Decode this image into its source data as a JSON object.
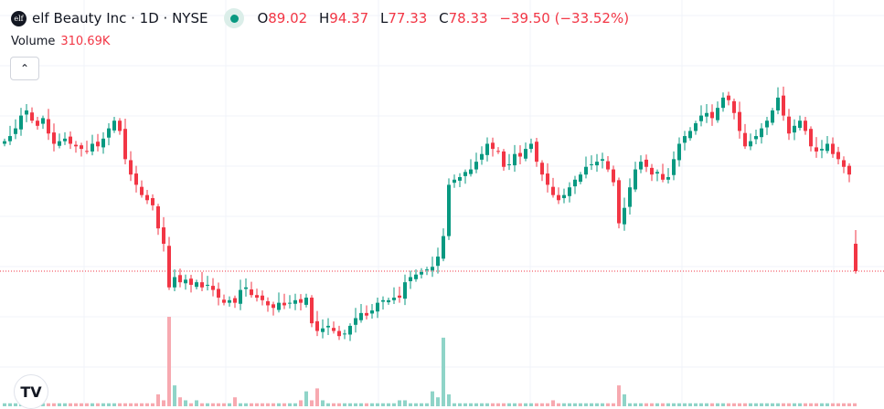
{
  "header": {
    "logo_text": "elf",
    "title": "elf Beauty Inc · 1D · NYSE",
    "ohlc": {
      "o_label": "O",
      "o": "89.02",
      "h_label": "H",
      "h": "94.37",
      "l_label": "L",
      "l": "77.33",
      "c_label": "C",
      "c": "78.33",
      "change": "−39.50 (−33.52%)"
    },
    "market_status_color": "#089981"
  },
  "volume": {
    "label": "Volume",
    "value": "310.69K"
  },
  "collapse_icon": "chevron-up-icon",
  "watermark": "TradingView",
  "colors": {
    "up": "#089981",
    "down": "#f23645",
    "up_volume": "#8fd4c8",
    "down_volume": "#f7a9b0",
    "grid": "#f0f3fa",
    "last_price_line": "#f23645"
  },
  "chart_data": {
    "type": "candlestick",
    "interval": "1D",
    "closes": [
      129,
      131,
      134,
      139,
      141,
      137,
      135,
      138,
      132,
      128,
      129,
      130,
      128,
      127,
      126,
      125,
      128,
      127,
      130,
      134,
      137,
      133,
      122,
      116,
      112,
      108,
      106,
      104,
      95,
      89,
      72,
      76,
      74,
      75,
      73,
      74,
      72,
      73,
      71,
      68,
      66,
      67,
      66,
      71,
      72,
      69,
      68,
      67,
      65,
      64,
      66,
      65,
      66,
      67,
      66,
      68,
      58,
      55,
      56,
      57,
      55,
      53,
      54,
      57,
      60,
      62,
      61,
      63,
      66,
      67,
      67,
      68,
      68,
      74,
      76,
      77,
      78,
      79,
      80,
      84,
      92,
      112,
      114,
      115,
      117,
      118,
      121,
      124,
      128,
      126,
      125,
      119,
      120,
      124,
      123,
      126,
      128,
      121,
      116,
      112,
      108,
      106,
      108,
      111,
      114,
      116,
      119,
      120,
      121,
      122,
      118,
      113,
      97,
      103,
      111,
      118,
      121,
      119,
      116,
      117,
      114,
      115,
      122,
      128,
      131,
      133,
      136,
      139,
      140,
      138,
      142,
      146,
      145,
      140,
      133,
      127,
      129,
      131,
      134,
      137,
      141,
      146,
      139,
      132,
      135,
      137,
      133,
      127,
      125,
      126,
      128,
      124,
      122,
      119,
      116
    ],
    "last_candle": {
      "open": 89.02,
      "high": 94.37,
      "low": 77.33,
      "close": 78.33
    },
    "volumes": [
      1,
      1,
      1,
      1,
      1,
      1,
      1,
      1,
      1,
      1,
      1,
      1,
      1,
      1,
      1,
      1,
      1,
      1,
      1,
      1,
      1,
      1,
      1,
      1,
      1,
      1,
      1,
      1,
      4,
      2,
      30,
      7,
      3,
      2,
      1,
      2,
      1,
      1,
      1,
      1,
      1,
      1,
      3,
      1,
      1,
      1,
      1,
      1,
      1,
      1,
      1,
      1,
      1,
      1,
      2,
      5,
      2,
      6,
      2,
      1,
      1,
      1,
      1,
      1,
      1,
      1,
      1,
      1,
      1,
      1,
      1,
      1,
      2,
      2,
      1,
      1,
      1,
      1,
      5,
      3,
      23,
      4,
      1,
      1,
      1,
      1,
      1,
      1,
      1,
      1,
      1,
      1,
      1,
      1,
      1,
      1,
      1,
      1,
      1,
      1,
      2,
      1,
      1,
      1,
      1,
      1,
      1,
      1,
      1,
      1,
      1,
      1,
      7,
      4,
      1,
      1,
      1,
      1,
      1,
      1,
      1,
      1,
      1,
      1,
      1,
      1,
      1,
      1,
      1,
      1,
      1,
      1,
      1,
      1,
      1,
      1,
      1,
      1,
      1,
      1,
      1,
      1,
      1,
      1,
      1,
      1,
      1,
      1,
      1,
      1,
      1,
      1,
      1,
      1,
      1,
      1
    ],
    "grid": true
  }
}
